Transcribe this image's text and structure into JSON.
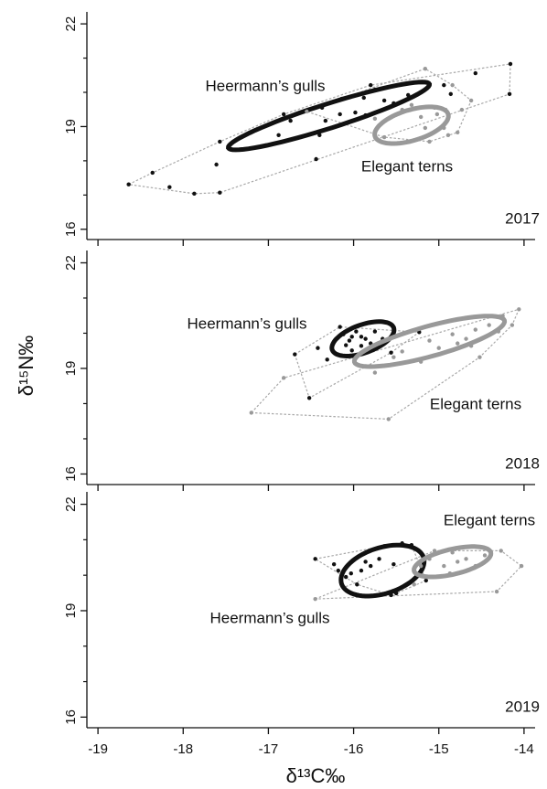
{
  "x_label": "δ¹³C‰",
  "y_label": "δ¹⁵N‰",
  "chart_data": [
    {
      "type": "scatter",
      "annotation": "2017",
      "xlim": [
        -19.13,
        -13.87
      ],
      "xticks": [
        -19,
        -18,
        -17,
        -16,
        -15,
        -14
      ],
      "ylim": [
        15.7,
        22.35
      ],
      "yticks": [
        16,
        19,
        22
      ],
      "minor_yticks": [
        17,
        18,
        20,
        21
      ],
      "series": [
        {
          "name": "Heermann’s gulls",
          "color": "#111111",
          "x": [
            -18.64,
            -18.36,
            -18.16,
            -17.87,
            -17.57,
            -17.61,
            -17.57,
            -16.88,
            -16.74,
            -16.82,
            -16.44,
            -16.4,
            -16.37,
            -16.33,
            -16.16,
            -15.98,
            -16.14,
            -15.86,
            -15.88,
            -15.75,
            -15.64,
            -15.53,
            -15.8,
            -15.36,
            -14.94,
            -14.57,
            -14.86,
            -14.16,
            -14.17
          ],
          "values": [
            17.31,
            17.65,
            17.23,
            17.04,
            17.07,
            17.89,
            18.56,
            18.75,
            19.17,
            19.36,
            18.05,
            18.75,
            19.55,
            19.17,
            19.36,
            19.41,
            19.81,
            19.33,
            19.84,
            20.08,
            19.76,
            19.68,
            20.21,
            19.92,
            20.21,
            20.56,
            19.95,
            20.83,
            19.95
          ],
          "ellipse": {
            "center": [
              -16.29,
              19.31
            ],
            "major_end": [
              -15.11,
              20.24
            ],
            "minor_end": [
              -16.33,
              19.65
            ]
          }
        },
        {
          "name": "Elegant terns",
          "color": "#999999",
          "x": [
            -15.16,
            -14.84,
            -16.55,
            -15.75,
            -15.64,
            -15.32,
            -15.21,
            -15.16,
            -15.02,
            -14.94,
            -14.89,
            -14.78,
            -14.92,
            -15.11,
            -14.73,
            -15.43,
            -14.62,
            -15.05
          ],
          "values": [
            20.69,
            20.21,
            19.44,
            19.23,
            18.69,
            19.63,
            19.28,
            18.96,
            19.36,
            18.96,
            18.75,
            18.83,
            19.49,
            18.56,
            19.49,
            19.49,
            19.76,
            19.55
          ],
          "ellipse": {
            "center": [
              -15.32,
              19.04
            ],
            "major_end": [
              -14.89,
              19.36
            ],
            "minor_end": [
              -15.37,
              19.47
            ]
          }
        }
      ]
    },
    {
      "type": "scatter",
      "annotation": "2018",
      "xlim": [
        -19.13,
        -13.87
      ],
      "xticks": [
        -19,
        -18,
        -17,
        -16,
        -15,
        -14
      ],
      "ylim": [
        15.7,
        22.35
      ],
      "yticks": [
        16,
        19,
        22
      ],
      "minor_yticks": [
        17,
        18,
        20,
        21
      ],
      "series": [
        {
          "name": "Heermann’s gulls",
          "color": "#111111",
          "x": [
            -16.69,
            -16.52,
            -16.42,
            -16.16,
            -16.12,
            -16.09,
            -16.05,
            -16.02,
            -15.97,
            -15.91,
            -15.86,
            -15.91,
            -15.8,
            -15.75,
            -16.02,
            -16.31,
            -15.73,
            -15.66,
            -15.56,
            -15.23
          ],
          "values": [
            19.4,
            18.16,
            19.58,
            20.18,
            19.97,
            19.66,
            19.79,
            19.9,
            20.05,
            19.9,
            19.84,
            19.64,
            19.71,
            20.05,
            19.51,
            19.25,
            19.58,
            19.84,
            19.45,
            20.03
          ],
          "ellipse": {
            "center": [
              -15.89,
              19.84
            ],
            "major_end": [
              -15.53,
              20.16
            ],
            "minor_end": [
              -15.95,
              20.21
            ]
          }
        },
        {
          "name": "Elegant terns",
          "color": "#999999",
          "x": [
            -17.2,
            -16.82,
            -15.59,
            -15.75,
            -15.53,
            -15.43,
            -15.11,
            -14.84,
            -14.68,
            -14.57,
            -14.41,
            -14.3,
            -14.14,
            -14.06,
            -14.25,
            -14.52,
            -15.0,
            -15.21,
            -14.78,
            -14.62
          ],
          "values": [
            17.74,
            18.73,
            17.56,
            18.88,
            19.32,
            19.48,
            19.79,
            19.97,
            19.84,
            20.1,
            20.23,
            20.05,
            20.23,
            20.68,
            20.49,
            19.32,
            19.58,
            19.19,
            19.71,
            19.64
          ],
          "ellipse": {
            "center": [
              -15.11,
              19.77
            ],
            "major_end": [
              -14.23,
              20.36
            ],
            "minor_end": [
              -15.16,
              20.18
            ]
          }
        }
      ]
    },
    {
      "type": "scatter",
      "annotation": "2019",
      "xlim": [
        -19.13,
        -13.87
      ],
      "xticks": [
        -19,
        -18,
        -17,
        -16,
        -15,
        -14
      ],
      "ylim": [
        15.7,
        22.35
      ],
      "yticks": [
        16,
        19,
        22
      ],
      "minor_yticks": [
        17,
        18,
        20,
        21
      ],
      "series": [
        {
          "name": "Heermann’s gulls",
          "color": "#111111",
          "x": [
            -16.45,
            -16.23,
            -16.18,
            -16.09,
            -16.03,
            -15.91,
            -15.86,
            -15.8,
            -15.7,
            -15.53,
            -15.64,
            -15.43,
            -15.32,
            -15.15,
            -15.5,
            -15.56,
            -15.96
          ],
          "values": [
            20.46,
            20.31,
            20.13,
            19.95,
            20.05,
            20.13,
            20.38,
            20.26,
            20.46,
            20.31,
            20.82,
            20.9,
            20.85,
            19.85,
            19.49,
            19.44,
            19.74
          ],
          "ellipse": {
            "center": [
              -15.66,
              20.13
            ],
            "major_end": [
              -15.18,
              20.51
            ],
            "minor_end": [
              -15.75,
              20.74
            ]
          }
        },
        {
          "name": "Elegant terns",
          "color": "#999999",
          "x": [
            -16.45,
            -15.29,
            -15.11,
            -14.94,
            -14.87,
            -14.78,
            -14.68,
            -14.57,
            -14.46,
            -14.27,
            -14.03,
            -14.32,
            -15.05,
            -15.21,
            -14.84
          ],
          "values": [
            19.33,
            19.74,
            20.46,
            20.26,
            20.05,
            20.38,
            20.46,
            20.26,
            20.56,
            20.69,
            20.26,
            19.54,
            20.69,
            20.26,
            20.64
          ],
          "ellipse": {
            "center": [
              -14.84,
              20.38
            ],
            "major_end": [
              -14.39,
              20.64
            ],
            "minor_end": [
              -14.88,
              20.72
            ]
          }
        }
      ]
    }
  ]
}
